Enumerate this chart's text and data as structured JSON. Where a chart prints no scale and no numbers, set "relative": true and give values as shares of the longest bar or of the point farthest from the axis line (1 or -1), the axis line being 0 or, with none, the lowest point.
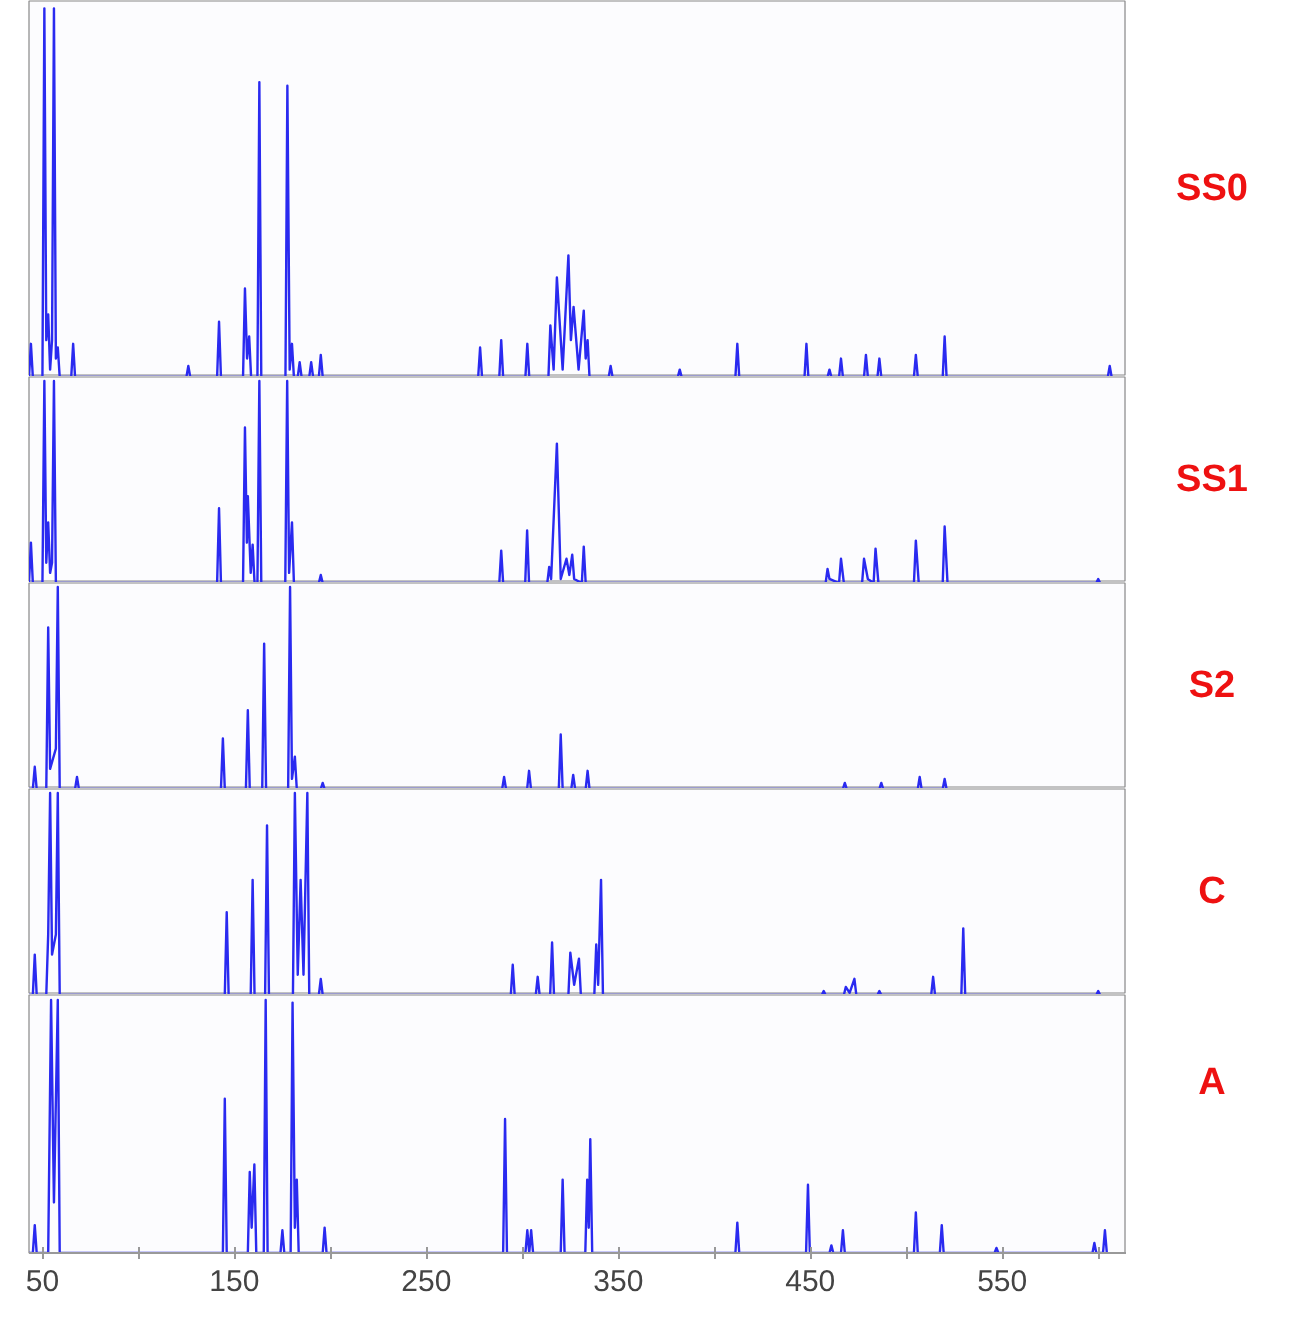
{
  "chart_data": [
    {
      "type": "line",
      "relative": true,
      "xlim": [
        43,
        615
      ],
      "tick_labels": false,
      "x": [
        43,
        44,
        45,
        50,
        51,
        52,
        53,
        54,
        55,
        56,
        57,
        58,
        59,
        65,
        66,
        67,
        125,
        126,
        127,
        141,
        142,
        143,
        154.5,
        155.5,
        156.6,
        157.7,
        158.7,
        162,
        163,
        164,
        176.6,
        177.6,
        178.8,
        180,
        181,
        183,
        184,
        185,
        189,
        190,
        191,
        194,
        195,
        196,
        277,
        278,
        279,
        288,
        289,
        290,
        301.6,
        302.6,
        303.6,
        313.6,
        314.6,
        316.3,
        318,
        321,
        324,
        325.3,
        326.7,
        329.3,
        332,
        333,
        334,
        335,
        345,
        346,
        347,
        381,
        382,
        383,
        411,
        412,
        413,
        447,
        448,
        449,
        459,
        460,
        461,
        465,
        466,
        467,
        478,
        479,
        480,
        485,
        486,
        487,
        504,
        505,
        506,
        519,
        520,
        521,
        605,
        606,
        607
      ],
      "series": [
        {
          "name": "SS0",
          "color": "#2a2af0",
          "values": [
            0,
            0.09,
            0,
            0,
            1,
            0.1,
            0.17,
            0.02,
            0.1,
            1,
            0.05,
            0.08,
            0,
            0,
            0.09,
            0,
            0,
            0.03,
            0,
            0,
            0.15,
            0,
            0,
            0.24,
            0.05,
            0.11,
            0,
            0,
            0.8,
            0,
            0,
            0.79,
            0.02,
            0.09,
            0,
            0,
            0.04,
            0,
            0,
            0.04,
            0,
            0,
            0.06,
            0,
            0,
            0.08,
            0,
            0,
            0.1,
            0,
            0,
            0.09,
            0,
            0,
            0.14,
            0.02,
            0.27,
            0.02,
            0.33,
            0.1,
            0.19,
            0.02,
            0.18,
            0.05,
            0.1,
            0,
            0,
            0.03,
            0,
            0,
            0.02,
            0,
            0,
            0.09,
            0,
            0,
            0.09,
            0,
            0,
            0.02,
            0,
            0,
            0.05,
            0,
            0,
            0.06,
            0,
            0,
            0.05,
            0,
            0,
            0.06,
            0,
            0,
            0.11,
            0,
            0,
            0.03,
            0
          ]
        }
      ]
    },
    {
      "type": "line",
      "relative": true,
      "xlim": [
        43,
        615
      ],
      "tick_labels": false,
      "x": [
        43,
        44,
        45,
        50,
        51,
        52,
        53,
        54,
        55,
        56,
        57,
        141,
        142,
        143,
        154.5,
        155.5,
        156.5,
        157,
        158.5,
        159.5,
        160.5,
        162,
        163,
        164,
        176.5,
        177.5,
        178.5,
        180,
        181,
        194,
        195,
        196,
        288,
        289,
        290,
        301.5,
        302.5,
        303.5,
        313,
        314,
        315,
        318,
        320,
        323,
        324.5,
        326,
        327,
        331,
        332,
        333,
        458,
        459,
        460,
        465,
        466,
        467.5,
        477,
        478,
        480,
        483,
        484,
        485.5,
        504,
        505,
        506.5,
        519,
        520,
        521.5,
        599,
        600,
        601
      ],
      "series": [
        {
          "name": "SS1",
          "color": "#2a2af0",
          "values": [
            0,
            0.2,
            0,
            0,
            1,
            0.1,
            0.3,
            0.05,
            0.1,
            1,
            0,
            0,
            0.37,
            0,
            0,
            0.77,
            0.2,
            0.43,
            0.05,
            0.19,
            0,
            0,
            1,
            0,
            0,
            1,
            0.05,
            0.3,
            0,
            0,
            0.04,
            0,
            0,
            0.16,
            0,
            0,
            0.26,
            0,
            0,
            0.08,
            0.02,
            0.69,
            0.02,
            0.12,
            0.04,
            0.14,
            0.02,
            0,
            0.18,
            0,
            0,
            0.07,
            0.02,
            0,
            0.12,
            0,
            0,
            0.12,
            0.02,
            0,
            0.17,
            0,
            0,
            0.21,
            0,
            0,
            0.28,
            0,
            0,
            0.02,
            0
          ]
        }
      ]
    },
    {
      "type": "line",
      "relative": true,
      "xlim": [
        43,
        615
      ],
      "tick_labels": false,
      "x": [
        43,
        45,
        46,
        47,
        52,
        53,
        54,
        57,
        58,
        59,
        67,
        68,
        69,
        143,
        144,
        145,
        156,
        157,
        158,
        164.5,
        165.5,
        166.5,
        178,
        179,
        180,
        181.5,
        182.5,
        195,
        196,
        197,
        289.5,
        290.5,
        291.5,
        302.5,
        303.5,
        304.5,
        319,
        320,
        321,
        325.5,
        326.5,
        327.5,
        333,
        334,
        335,
        467,
        468,
        469,
        486,
        487,
        488,
        506,
        507,
        508,
        519,
        520,
        521
      ],
      "series": [
        {
          "name": "S2",
          "color": "#2a2af0",
          "values": [
            0,
            0,
            0.11,
            0,
            0,
            0.8,
            0.1,
            0.2,
            1,
            0,
            0,
            0.06,
            0,
            0,
            0.25,
            0,
            0,
            0.39,
            0,
            0,
            0.72,
            0,
            0,
            1,
            0.05,
            0.16,
            0,
            0,
            0.03,
            0,
            0,
            0.06,
            0,
            0,
            0.09,
            0,
            0,
            0.27,
            0,
            0,
            0.07,
            0,
            0,
            0.09,
            0,
            0,
            0.03,
            0,
            0,
            0.03,
            0,
            0,
            0.06,
            0,
            0,
            0.05,
            0
          ]
        }
      ]
    },
    {
      "type": "line",
      "relative": true,
      "xlim": [
        43,
        615
      ],
      "tick_labels": false,
      "x": [
        43,
        45,
        46,
        47,
        52,
        53,
        54,
        55,
        57,
        58,
        59,
        145,
        146,
        147,
        158.5,
        159.5,
        160.5,
        166,
        167,
        168,
        180.5,
        181.5,
        183,
        184.5,
        186,
        188,
        189,
        194,
        195,
        196,
        294,
        295,
        296,
        307,
        308,
        309,
        314.5,
        315.5,
        316.5,
        324,
        325,
        327,
        329.5,
        330.5,
        337.5,
        338.5,
        339.5,
        341,
        342,
        456,
        457,
        458,
        467.5,
        468.5,
        470.5,
        473,
        474,
        485,
        486,
        487,
        513,
        514,
        515,
        528.7,
        529.7,
        530.7,
        599,
        600,
        601
      ],
      "series": [
        {
          "name": "C",
          "color": "#2a2af0",
          "values": [
            0,
            0,
            0.2,
            0,
            0,
            0.3,
            1,
            0.2,
            0.3,
            1,
            0,
            0,
            0.41,
            0,
            0,
            0.57,
            0,
            0,
            0.84,
            0,
            0,
            1,
            0.1,
            0.57,
            0.1,
            1,
            0,
            0,
            0.08,
            0,
            0,
            0.15,
            0,
            0,
            0.09,
            0,
            0,
            0.26,
            0,
            0,
            0.21,
            0.05,
            0.18,
            0,
            0,
            0.25,
            0.05,
            0.57,
            0,
            0,
            0.02,
            0,
            0,
            0.04,
            0.01,
            0.08,
            0,
            0,
            0.02,
            0,
            0,
            0.09,
            0,
            0,
            0.33,
            0,
            0,
            0.02,
            0
          ]
        }
      ]
    },
    {
      "type": "line",
      "relative": true,
      "xlim": [
        43,
        615
      ],
      "tick_labels": "x",
      "xticks": [
        50,
        {
          "value": 100,
          "label": null
        },
        150,
        {
          "value": 200,
          "label": null
        },
        250,
        {
          "value": 300,
          "label": null
        },
        350,
        {
          "value": 400,
          "label": null
        },
        450,
        {
          "value": 500,
          "label": null
        },
        550,
        {
          "value": 600,
          "label": null
        }
      ],
      "x": [
        43,
        45,
        46,
        47,
        53,
        54.5,
        56,
        58,
        59,
        144,
        145,
        146,
        157,
        158,
        159,
        160.4,
        161.4,
        165.3,
        166.3,
        167.3,
        174,
        175,
        176,
        179.3,
        180.3,
        181.5,
        182.5,
        183.5,
        196,
        197,
        198,
        290,
        291,
        292,
        301.6,
        302.6,
        303.6,
        304.6,
        305.6,
        320,
        321,
        322,
        332.8,
        333.8,
        334.6,
        335.4,
        336.4,
        411,
        412,
        413,
        447.8,
        448.8,
        449.8,
        460,
        461,
        462,
        466,
        467,
        468,
        504,
        505,
        506,
        517.5,
        518.5,
        519.5,
        546,
        547,
        548,
        597,
        598,
        599,
        602.5,
        603.5,
        604.5
      ],
      "series": [
        {
          "name": "A",
          "color": "#2a2af0",
          "values": [
            0,
            0,
            0.11,
            0,
            0,
            1,
            0.2,
            1,
            0,
            0,
            0.61,
            0,
            0,
            0.32,
            0.1,
            0.35,
            0,
            0,
            1,
            0,
            0,
            0.09,
            0,
            0,
            0.99,
            0.1,
            0.29,
            0,
            0,
            0.1,
            0,
            0,
            0.53,
            0,
            0,
            0.09,
            0,
            0.09,
            0,
            0,
            0.29,
            0,
            0,
            0.29,
            0.1,
            0.45,
            0,
            0,
            0.12,
            0,
            0,
            0.27,
            0,
            0,
            0.03,
            0,
            0,
            0.09,
            0,
            0,
            0.16,
            0,
            0,
            0.11,
            0,
            0,
            0.02,
            0,
            0,
            0.04,
            0,
            0,
            0.09,
            0
          ]
        }
      ]
    }
  ]
}
